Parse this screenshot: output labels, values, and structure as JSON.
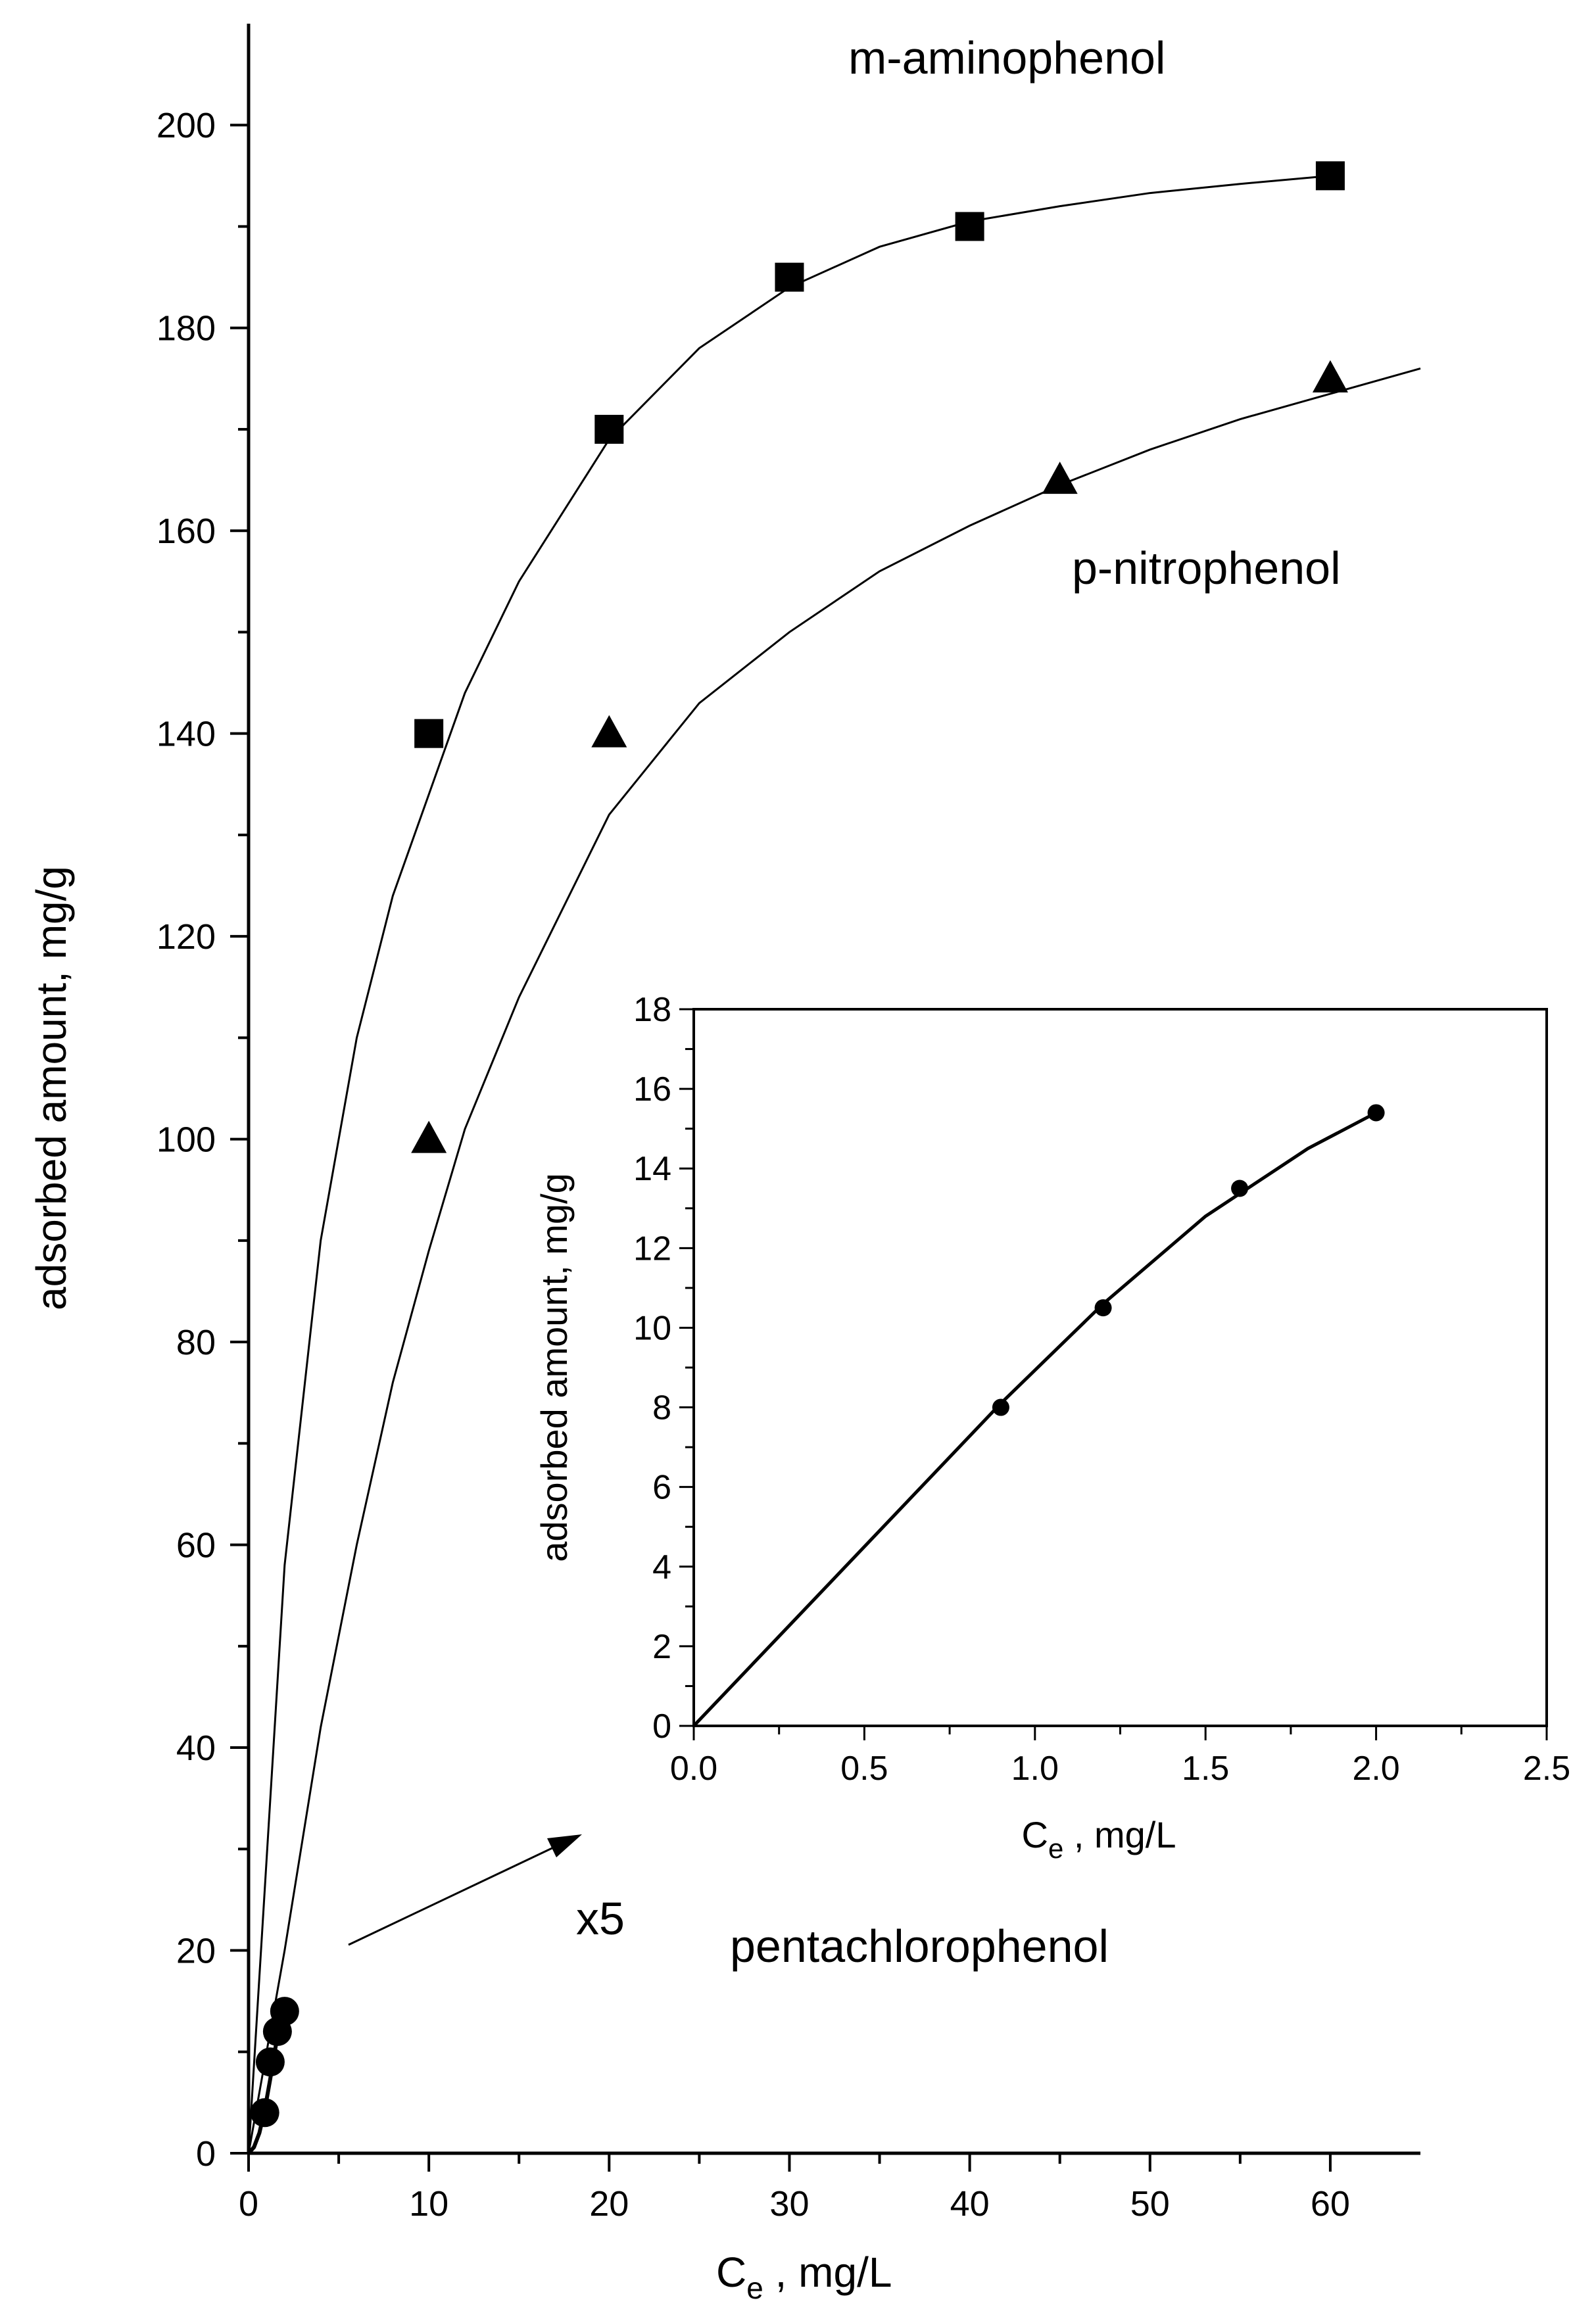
{
  "chart_data": [
    {
      "type": "scatter",
      "xlabel": {
        "main": "C",
        "sub": "e",
        "rest": " , mg/L"
      },
      "ylabel": "adsorbed amount, mg/g",
      "xlim": [
        0,
        65
      ],
      "ylim": [
        0,
        210
      ],
      "xticks": [
        0,
        10,
        20,
        30,
        40,
        50,
        60
      ],
      "yticks": [
        0,
        20,
        40,
        60,
        80,
        100,
        120,
        140,
        160,
        180,
        200
      ],
      "grid": false,
      "series": [
        {
          "name": "m-aminophenol",
          "marker": "square",
          "x": [
            10,
            20,
            30,
            40,
            60
          ],
          "y": [
            140,
            170,
            185,
            190,
            195
          ],
          "fit": {
            "x": [
              0,
              2,
              4,
              6,
              8,
              10,
              12,
              15,
              20,
              25,
              30,
              35,
              40,
              45,
              50,
              55,
              60
            ],
            "y": [
              0,
              58,
              90,
              110,
              124,
              134,
              144,
              155,
              169,
              178,
              184,
              188,
              190.5,
              192,
              193.3,
              194.2,
              195
            ]
          }
        },
        {
          "name": "p-nitrophenol",
          "marker": "triangle",
          "x": [
            10,
            20,
            45,
            60
          ],
          "y": [
            100,
            140,
            165,
            175
          ],
          "fit": {
            "x": [
              0,
              2,
              4,
              6,
              8,
              10,
              12,
              15,
              20,
              25,
              30,
              35,
              40,
              45,
              50,
              55,
              60,
              65
            ],
            "y": [
              0,
              20,
              42,
              60,
              76,
              89,
              101,
              114,
              132,
              143,
              150,
              156,
              160.5,
              164.5,
              168,
              171,
              173.5,
              176
            ]
          }
        },
        {
          "name": "pentachlorophenol",
          "marker": "circle",
          "x": [
            0.9,
            1.2,
            1.6,
            2.0
          ],
          "y": [
            4,
            9,
            12,
            14
          ],
          "fit": {
            "x": [
              0,
              0.3,
              0.6,
              0.9,
              1.2,
              1.5,
              1.8,
              2.0
            ],
            "y": [
              0,
              0.6,
              2.0,
              4.3,
              7.3,
              10.5,
              13.2,
              14.2
            ]
          }
        }
      ],
      "annotations": [
        {
          "text": "x5",
          "near": "arrow-head"
        }
      ]
    },
    {
      "type": "scatter",
      "position": "inset",
      "xlabel": {
        "main": "C",
        "sub": "e",
        "rest": " , mg/L"
      },
      "ylabel": "adsorbed amount, mg/g",
      "xlim": [
        0,
        2.5
      ],
      "ylim": [
        0,
        18
      ],
      "xticks": [
        0.0,
        0.5,
        1.0,
        1.5,
        2.0,
        2.5
      ],
      "yticks": [
        0,
        2,
        4,
        6,
        8,
        10,
        12,
        14,
        16,
        18
      ],
      "grid": false,
      "series": [
        {
          "name": "pentachlorophenol",
          "marker": "circle",
          "x": [
            0.9,
            1.2,
            1.6,
            2.0
          ],
          "y": [
            8,
            10.5,
            13.5,
            15.4
          ],
          "fit": {
            "x": [
              0,
              0.3,
              0.6,
              0.9,
              1.2,
              1.5,
              1.8,
              2.0
            ],
            "y": [
              0,
              2.7,
              5.4,
              8.1,
              10.6,
              12.8,
              14.5,
              15.4
            ]
          }
        }
      ]
    }
  ]
}
